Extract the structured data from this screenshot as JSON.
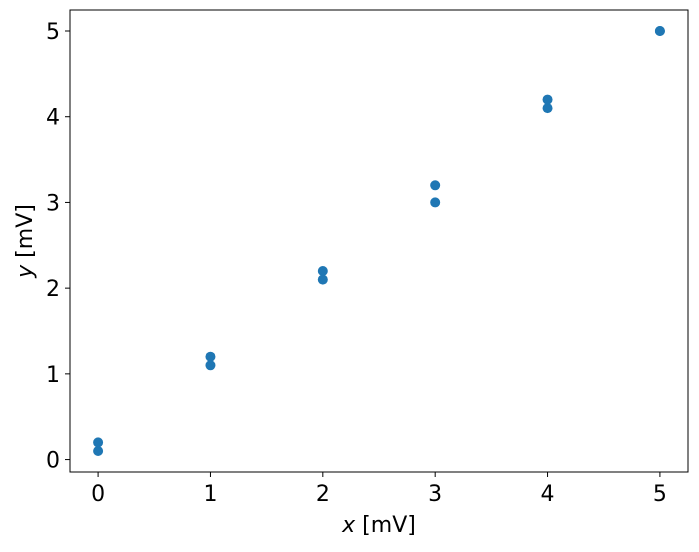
{
  "chart_data": {
    "type": "scatter",
    "title": "",
    "xlabel_var": "x",
    "xlabel_unit": " [mV]",
    "ylabel_var": "y",
    "ylabel_unit": " [mV]",
    "xlim": [
      -0.25,
      5.25
    ],
    "ylim": [
      -0.145,
      5.245
    ],
    "xticks": [
      0,
      1,
      2,
      3,
      4,
      5
    ],
    "yticks": [
      0,
      1,
      2,
      3,
      4,
      5
    ],
    "xtick_labels": [
      "0",
      "1",
      "2",
      "3",
      "4",
      "5"
    ],
    "ytick_labels": [
      "0",
      "1",
      "2",
      "3",
      "4",
      "5"
    ],
    "grid": false,
    "color": "#1f77b4",
    "points": [
      {
        "x": 0,
        "y": 0.1
      },
      {
        "x": 0,
        "y": 0.2
      },
      {
        "x": 1,
        "y": 1.1
      },
      {
        "x": 1,
        "y": 1.2
      },
      {
        "x": 2,
        "y": 2.1
      },
      {
        "x": 2,
        "y": 2.2
      },
      {
        "x": 3,
        "y": 3.0
      },
      {
        "x": 3,
        "y": 3.2
      },
      {
        "x": 4,
        "y": 4.1
      },
      {
        "x": 4,
        "y": 4.2
      },
      {
        "x": 5,
        "y": 5.0
      },
      {
        "x": 5,
        "y": 5.0
      }
    ]
  }
}
